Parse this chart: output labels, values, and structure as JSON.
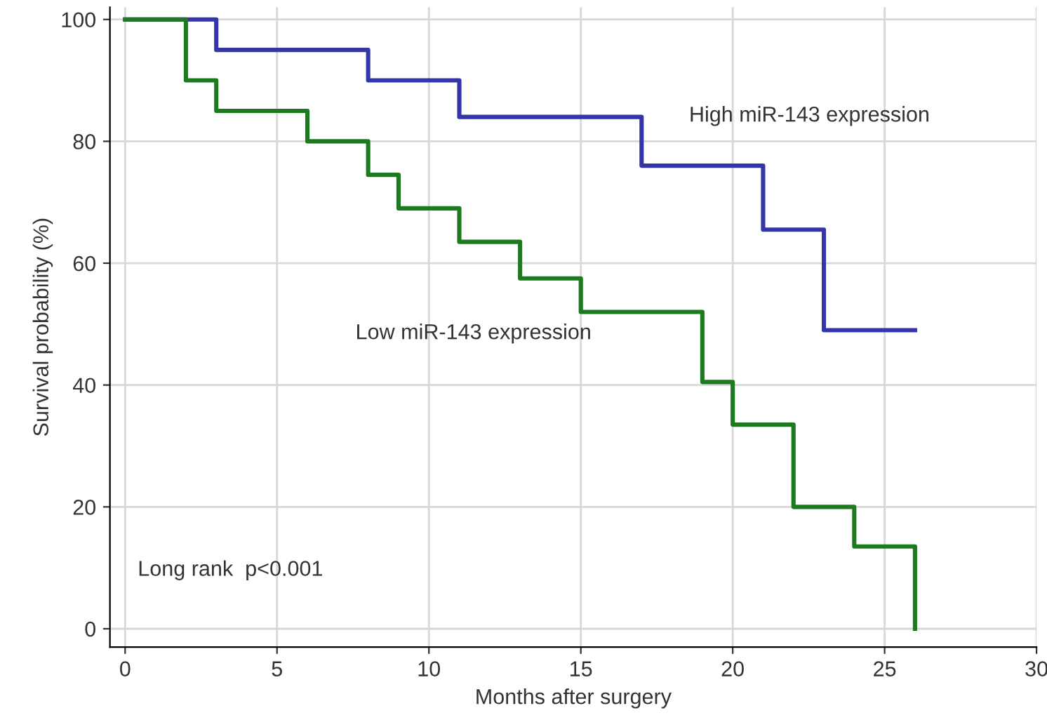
{
  "chart_data": {
    "type": "step",
    "xlabel": "Months after surgery",
    "ylabel": "Survival probability (%)",
    "series": [
      {
        "color": "#3535a8",
        "x": [
          0,
          3,
          8,
          11,
          17,
          21,
          23,
          26
        ],
        "values": [
          100,
          95,
          90,
          84,
          76,
          65.5,
          49,
          49
        ]
      },
      {
        "color": "#1e7a1e",
        "x": [
          0,
          2,
          3,
          6,
          8,
          9,
          11,
          13,
          15,
          19,
          20,
          22,
          24,
          26
        ],
        "values": [
          100,
          90,
          85,
          80,
          74.5,
          69,
          63.5,
          57.5,
          52,
          40.5,
          33.5,
          20,
          13.5,
          0
        ]
      }
    ],
    "annotations": [
      "High miR-143 expression",
      "Low miR-143 expression",
      "Long rank  p<0.001"
    ],
    "xlim": [
      -0.5,
      30
    ],
    "ylim": [
      -3,
      102
    ],
    "xticks": [
      0,
      5,
      10,
      15,
      20,
      25,
      30
    ],
    "yticks": [
      0,
      20,
      40,
      60,
      80,
      100
    ],
    "grid": true,
    "line_style": "solid",
    "marker": "none"
  }
}
